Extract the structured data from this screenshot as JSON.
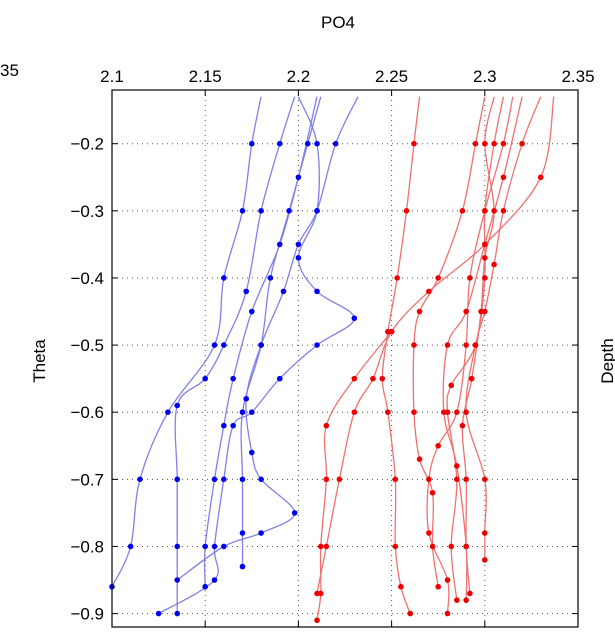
{
  "chart_data": {
    "type": "line",
    "title": "PO4",
    "xlabel": "PO4",
    "ylabel": "Theta",
    "right_label_partial": "Depth",
    "left_clipped_tick": "35",
    "xlim": [
      2.1,
      2.35
    ],
    "ylim": [
      -0.92,
      -0.12
    ],
    "y_reversed": true,
    "x_axis_position": "top",
    "grid": true,
    "xticks": [
      "2.1",
      "2.15",
      "2.2",
      "2.25",
      "2.3",
      "2.35"
    ],
    "xtick_values": [
      2.1,
      2.15,
      2.2,
      2.25,
      2.3,
      2.35
    ],
    "yticks": [
      "−0.2",
      "−0.3",
      "−0.4",
      "−0.5",
      "−0.6",
      "−0.7",
      "−0.8",
      "−0.9"
    ],
    "ytick_values": [
      -0.2,
      -0.3,
      -0.4,
      -0.5,
      -0.6,
      -0.7,
      -0.8,
      -0.9
    ],
    "colors": {
      "blue_line": "#8080e6",
      "blue_marker": "#0000ee",
      "red_line": "#f07070",
      "red_marker": "#ee0000",
      "grid": "#555555"
    },
    "series": [
      {
        "group": "blue",
        "points": [
          [
            2.18,
            -0.13
          ],
          [
            2.175,
            -0.2
          ],
          [
            2.17,
            -0.3
          ],
          [
            2.16,
            -0.4
          ],
          [
            2.155,
            -0.5
          ],
          [
            2.13,
            -0.6
          ],
          [
            2.115,
            -0.7
          ],
          [
            2.11,
            -0.8
          ],
          [
            2.1,
            -0.86
          ]
        ]
      },
      {
        "group": "blue",
        "points": [
          [
            2.198,
            -0.13
          ],
          [
            2.19,
            -0.2
          ],
          [
            2.18,
            -0.3
          ],
          [
            2.172,
            -0.42
          ],
          [
            2.16,
            -0.5
          ],
          [
            2.15,
            -0.55
          ],
          [
            2.135,
            -0.59
          ],
          [
            2.135,
            -0.7
          ],
          [
            2.135,
            -0.8
          ],
          [
            2.135,
            -0.9
          ]
        ]
      },
      {
        "group": "blue",
        "points": [
          [
            2.21,
            -0.13
          ],
          [
            2.2,
            -0.25
          ],
          [
            2.19,
            -0.35
          ],
          [
            2.175,
            -0.45
          ],
          [
            2.165,
            -0.55
          ],
          [
            2.16,
            -0.62
          ],
          [
            2.155,
            -0.7
          ],
          [
            2.15,
            -0.8
          ],
          [
            2.15,
            -0.86
          ]
        ]
      },
      {
        "group": "blue",
        "points": [
          [
            2.212,
            -0.13
          ],
          [
            2.205,
            -0.2
          ],
          [
            2.195,
            -0.3
          ],
          [
            2.185,
            -0.4
          ],
          [
            2.18,
            -0.5
          ],
          [
            2.17,
            -0.6
          ],
          [
            2.17,
            -0.7
          ],
          [
            2.17,
            -0.78
          ],
          [
            2.17,
            -0.83
          ]
        ]
      },
      {
        "group": "blue",
        "points": [
          [
            2.232,
            -0.13
          ],
          [
            2.22,
            -0.2
          ],
          [
            2.21,
            -0.3
          ],
          [
            2.2,
            -0.35
          ],
          [
            2.192,
            -0.42
          ],
          [
            2.18,
            -0.5
          ],
          [
            2.172,
            -0.58
          ],
          [
            2.175,
            -0.66
          ],
          [
            2.18,
            -0.7
          ],
          [
            2.198,
            -0.75
          ],
          [
            2.18,
            -0.78
          ],
          [
            2.16,
            -0.8
          ],
          [
            2.135,
            -0.85
          ]
        ]
      },
      {
        "group": "blue",
        "points": [
          [
            2.2,
            -0.13
          ],
          [
            2.21,
            -0.2
          ],
          [
            2.21,
            -0.3
          ],
          [
            2.2,
            -0.37
          ],
          [
            2.21,
            -0.42
          ],
          [
            2.23,
            -0.46
          ],
          [
            2.21,
            -0.5
          ],
          [
            2.19,
            -0.55
          ],
          [
            2.175,
            -0.6
          ],
          [
            2.165,
            -0.62
          ],
          [
            2.16,
            -0.7
          ],
          [
            2.155,
            -0.8
          ],
          [
            2.155,
            -0.85
          ],
          [
            2.125,
            -0.9
          ]
        ]
      },
      {
        "group": "red",
        "points": [
          [
            2.265,
            -0.13
          ],
          [
            2.262,
            -0.2
          ],
          [
            2.258,
            -0.3
          ],
          [
            2.253,
            -0.4
          ],
          [
            2.248,
            -0.48
          ],
          [
            2.245,
            -0.55
          ],
          [
            2.248,
            -0.6
          ],
          [
            2.252,
            -0.7
          ],
          [
            2.252,
            -0.8
          ],
          [
            2.255,
            -0.86
          ],
          [
            2.26,
            -0.9
          ]
        ]
      },
      {
        "group": "red",
        "points": [
          [
            2.3,
            -0.13
          ],
          [
            2.295,
            -0.2
          ],
          [
            2.288,
            -0.3
          ],
          [
            2.275,
            -0.4
          ],
          [
            2.265,
            -0.45
          ],
          [
            2.262,
            -0.5
          ],
          [
            2.262,
            -0.6
          ],
          [
            2.265,
            -0.67
          ],
          [
            2.272,
            -0.72
          ],
          [
            2.272,
            -0.8
          ],
          [
            2.275,
            -0.86
          ]
        ]
      },
      {
        "group": "red",
        "points": [
          [
            2.31,
            -0.13
          ],
          [
            2.305,
            -0.2
          ],
          [
            2.3,
            -0.3
          ],
          [
            2.3,
            -0.4
          ],
          [
            2.295,
            -0.5
          ],
          [
            2.282,
            -0.56
          ],
          [
            2.28,
            -0.6
          ],
          [
            2.285,
            -0.7
          ],
          [
            2.282,
            -0.8
          ],
          [
            2.285,
            -0.88
          ]
        ]
      },
      {
        "group": "red",
        "points": [
          [
            2.32,
            -0.13
          ],
          [
            2.31,
            -0.25
          ],
          [
            2.3,
            -0.35
          ],
          [
            2.29,
            -0.45
          ],
          [
            2.28,
            -0.5
          ],
          [
            2.278,
            -0.6
          ],
          [
            2.285,
            -0.68
          ],
          [
            2.29,
            -0.8
          ],
          [
            2.29,
            -0.88
          ]
        ]
      },
      {
        "group": "red",
        "points": [
          [
            2.33,
            -0.13
          ],
          [
            2.32,
            -0.2
          ],
          [
            2.31,
            -0.3
          ],
          [
            2.305,
            -0.38
          ],
          [
            2.3,
            -0.45
          ],
          [
            2.295,
            -0.5
          ],
          [
            2.29,
            -0.6
          ],
          [
            2.3,
            -0.7
          ],
          [
            2.3,
            -0.78
          ],
          [
            2.3,
            -0.82
          ]
        ]
      },
      {
        "group": "red",
        "points": [
          [
            2.337,
            -0.13
          ],
          [
            2.33,
            -0.25
          ],
          [
            2.3,
            -0.35
          ],
          [
            2.27,
            -0.42
          ],
          [
            2.25,
            -0.48
          ],
          [
            2.24,
            -0.55
          ],
          [
            2.23,
            -0.6
          ],
          [
            2.222,
            -0.7
          ],
          [
            2.215,
            -0.8
          ],
          [
            2.21,
            -0.87
          ]
        ]
      },
      {
        "group": "red",
        "points": [
          [
            2.315,
            -0.13
          ],
          [
            2.31,
            -0.2
          ],
          [
            2.3,
            -0.3
          ],
          [
            2.292,
            -0.4
          ],
          [
            2.29,
            -0.5
          ],
          [
            2.285,
            -0.6
          ],
          [
            2.275,
            -0.65
          ],
          [
            2.27,
            -0.7
          ],
          [
            2.27,
            -0.78
          ],
          [
            2.28,
            -0.85
          ],
          [
            2.28,
            -0.9
          ]
        ]
      },
      {
        "group": "red",
        "points": [
          [
            2.305,
            -0.13
          ],
          [
            2.3,
            -0.2
          ],
          [
            2.305,
            -0.3
          ],
          [
            2.3,
            -0.37
          ],
          [
            2.298,
            -0.45
          ],
          [
            2.293,
            -0.55
          ],
          [
            2.288,
            -0.62
          ],
          [
            2.29,
            -0.7
          ],
          [
            2.29,
            -0.8
          ],
          [
            2.292,
            -0.87
          ]
        ]
      },
      {
        "group": "red",
        "points": [
          [
            2.25,
            -0.48
          ],
          [
            2.23,
            -0.55
          ],
          [
            2.215,
            -0.62
          ],
          [
            2.215,
            -0.7
          ],
          [
            2.212,
            -0.8
          ],
          [
            2.212,
            -0.87
          ],
          [
            2.21,
            -0.91
          ]
        ]
      }
    ]
  }
}
